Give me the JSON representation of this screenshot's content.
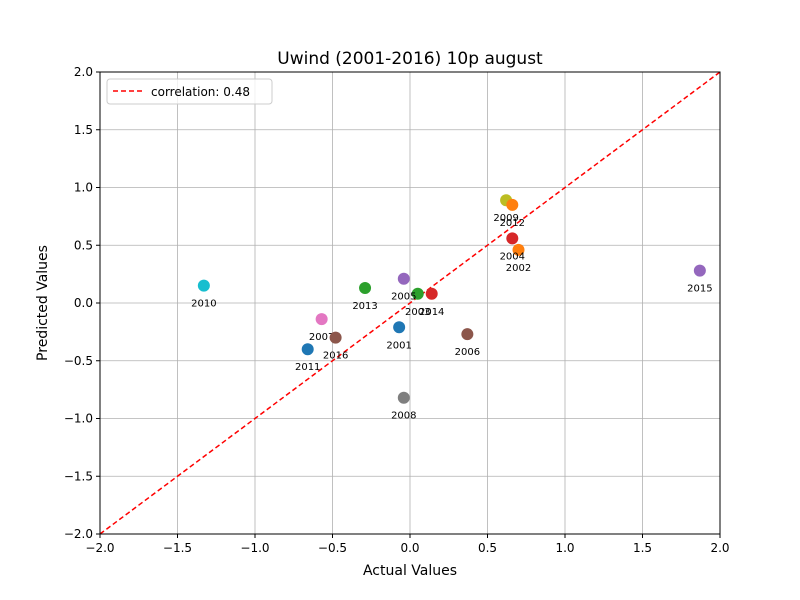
{
  "chart_data": {
    "type": "scatter",
    "title": "Uwind (2001-2016) 10p august",
    "xlabel": "Actual Values",
    "ylabel": "Predicted Values",
    "xlim": [
      -2.0,
      2.0
    ],
    "ylim": [
      -2.0,
      2.0
    ],
    "xticks": [
      -2.0,
      -1.5,
      -1.0,
      -0.5,
      0.0,
      0.5,
      1.0,
      1.5,
      2.0
    ],
    "yticks": [
      -2.0,
      -1.5,
      -1.0,
      -0.5,
      0.0,
      0.5,
      1.0,
      1.5,
      2.0
    ],
    "xtick_labels": [
      "−2.0",
      "−1.5",
      "−1.0",
      "−0.5",
      "0.0",
      "0.5",
      "1.0",
      "1.5",
      "2.0"
    ],
    "ytick_labels": [
      "−2.0",
      "−1.5",
      "−1.0",
      "−0.5",
      "0.0",
      "0.5",
      "1.0",
      "1.5",
      "2.0"
    ],
    "grid": true,
    "legend": {
      "position": "top-left",
      "entries": [
        {
          "label": "correlation: 0.48",
          "color": "#ff0000",
          "style": "dashed"
        }
      ]
    },
    "reference_line": {
      "x": [
        -2.0,
        2.0
      ],
      "y": [
        -2.0,
        2.0
      ],
      "color": "#ff0000",
      "style": "dashed"
    },
    "points": [
      {
        "label": "2001",
        "x": -0.07,
        "y": -0.21,
        "color": "#1f77b4"
      },
      {
        "label": "2002",
        "x": 0.7,
        "y": 0.46,
        "color": "#ff7f0e"
      },
      {
        "label": "2003",
        "x": 0.05,
        "y": 0.08,
        "color": "#2ca02c"
      },
      {
        "label": "2004",
        "x": 0.66,
        "y": 0.56,
        "color": "#d62728"
      },
      {
        "label": "2005",
        "x": -0.04,
        "y": 0.21,
        "color": "#9467bd"
      },
      {
        "label": "2006",
        "x": 0.37,
        "y": -0.27,
        "color": "#8c564b"
      },
      {
        "label": "2007",
        "x": -0.57,
        "y": -0.14,
        "color": "#e377c2"
      },
      {
        "label": "2008",
        "x": -0.04,
        "y": -0.82,
        "color": "#7f7f7f"
      },
      {
        "label": "2009",
        "x": 0.62,
        "y": 0.89,
        "color": "#bcbd22"
      },
      {
        "label": "2010",
        "x": -1.33,
        "y": 0.15,
        "color": "#17becf"
      },
      {
        "label": "2011",
        "x": -0.66,
        "y": -0.4,
        "color": "#1f77b4"
      },
      {
        "label": "2012",
        "x": 0.66,
        "y": 0.85,
        "color": "#ff7f0e"
      },
      {
        "label": "2013",
        "x": -0.29,
        "y": 0.13,
        "color": "#2ca02c"
      },
      {
        "label": "2014",
        "x": 0.14,
        "y": 0.08,
        "color": "#d62728"
      },
      {
        "label": "2015",
        "x": 1.87,
        "y": 0.28,
        "color": "#9467bd"
      },
      {
        "label": "2016",
        "x": -0.48,
        "y": -0.3,
        "color": "#8c564b"
      }
    ]
  }
}
